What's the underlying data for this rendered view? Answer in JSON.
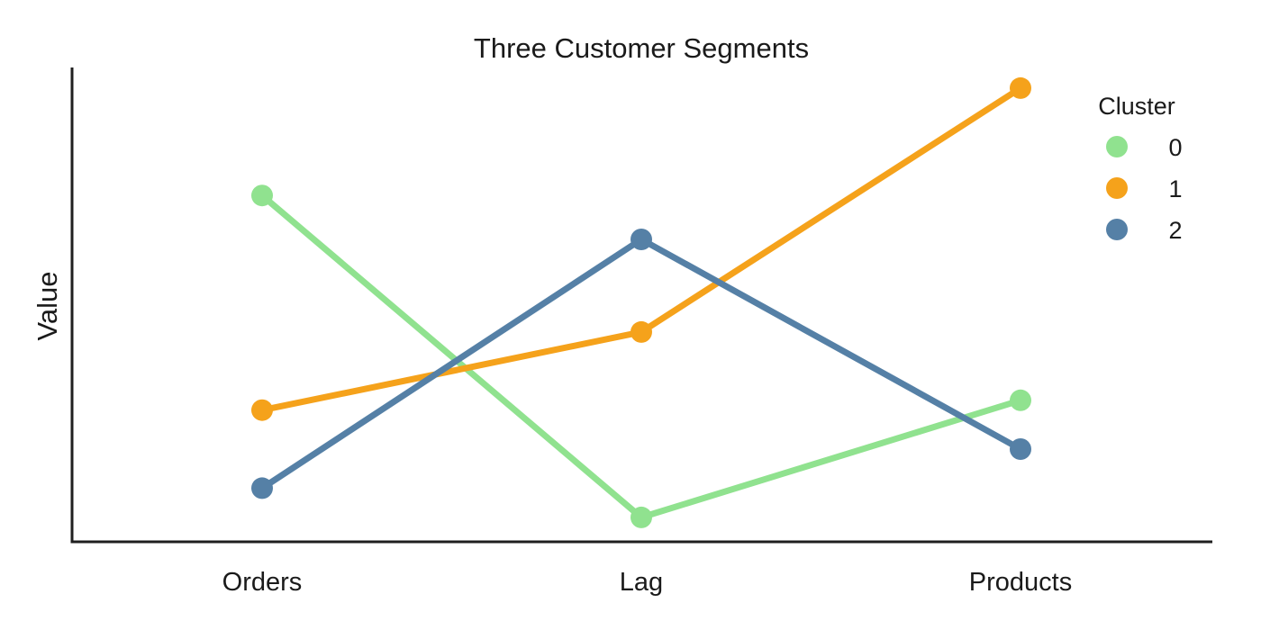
{
  "chart_data": {
    "type": "line",
    "title": "Three Customer Segments",
    "xlabel": "",
    "ylabel": "Value",
    "categories": [
      "Orders",
      "Lag",
      "Products"
    ],
    "ylim": [
      0,
      1
    ],
    "grid": false,
    "y_ticks_shown": false,
    "legend": {
      "title": "Cluster",
      "placement": "top-right"
    },
    "series": [
      {
        "name": "0",
        "values": [
          0.71,
          0.05,
          0.29
        ],
        "color": "#90e28f"
      },
      {
        "name": "1",
        "values": [
          0.27,
          0.43,
          0.93
        ],
        "color": "#f5a21b"
      },
      {
        "name": "2",
        "values": [
          0.11,
          0.62,
          0.19
        ],
        "color": "#5580a6"
      }
    ]
  }
}
